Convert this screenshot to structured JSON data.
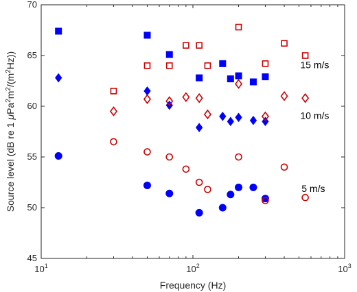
{
  "chart_data": {
    "type": "scatter",
    "xscale": "log",
    "xlim": [
      10,
      1000
    ],
    "ylim": [
      45,
      70
    ],
    "grid": false,
    "xlabel": "Frequency (Hz)",
    "ylabel_parts": {
      "base": "Source level (dB re 1 ",
      "mu": "μ",
      "pa": "Pa",
      "sup1": "2",
      "m": "m",
      "sup2": "2",
      "tail": "/(m",
      "sup3": "2",
      "end": "Hz))"
    },
    "x_ticks": [
      {
        "value": 10,
        "base": "10",
        "exp": "1"
      },
      {
        "value": 100,
        "base": "10",
        "exp": "2"
      },
      {
        "value": 1000,
        "base": "10",
        "exp": "3"
      }
    ],
    "y_ticks": [
      45,
      50,
      55,
      60,
      65,
      70
    ],
    "annotations": [
      {
        "text": "15 m/s",
        "x": 510,
        "y": 64.1
      },
      {
        "text": "10 m/s",
        "x": 510,
        "y": 59.1
      },
      {
        "text": "5 m/s",
        "x": 520,
        "y": 51.9
      }
    ],
    "series": [
      {
        "marker": "square",
        "filled": true,
        "color": "#0000ff",
        "points": [
          {
            "x": 13,
            "y": 67.4
          },
          {
            "x": 50,
            "y": 67.0
          },
          {
            "x": 70,
            "y": 65.1
          },
          {
            "x": 110,
            "y": 62.8
          },
          {
            "x": 157,
            "y": 64.2
          },
          {
            "x": 177,
            "y": 62.7
          },
          {
            "x": 200,
            "y": 63.0
          },
          {
            "x": 250,
            "y": 62.4
          },
          {
            "x": 300,
            "y": 62.9
          }
        ]
      },
      {
        "marker": "square",
        "filled": false,
        "color": "#cc0000",
        "points": [
          {
            "x": 30,
            "y": 61.5
          },
          {
            "x": 50,
            "y": 64.0
          },
          {
            "x": 70,
            "y": 64.0
          },
          {
            "x": 90,
            "y": 66.0
          },
          {
            "x": 110,
            "y": 66.0
          },
          {
            "x": 125,
            "y": 64.0
          },
          {
            "x": 200,
            "y": 67.8
          },
          {
            "x": 300,
            "y": 64.2
          },
          {
            "x": 400,
            "y": 66.2
          },
          {
            "x": 550,
            "y": 65.0
          }
        ]
      },
      {
        "marker": "diamond",
        "filled": true,
        "color": "#0000ff",
        "points": [
          {
            "x": 13,
            "y": 62.8
          },
          {
            "x": 50,
            "y": 61.5
          },
          {
            "x": 70,
            "y": 60.1
          },
          {
            "x": 110,
            "y": 57.9
          },
          {
            "x": 157,
            "y": 59.0
          },
          {
            "x": 177,
            "y": 58.5
          },
          {
            "x": 200,
            "y": 58.9
          },
          {
            "x": 250,
            "y": 58.6
          },
          {
            "x": 300,
            "y": 58.5
          }
        ]
      },
      {
        "marker": "diamond",
        "filled": false,
        "color": "#cc0000",
        "points": [
          {
            "x": 30,
            "y": 59.5
          },
          {
            "x": 50,
            "y": 60.7
          },
          {
            "x": 70,
            "y": 60.5
          },
          {
            "x": 90,
            "y": 60.9
          },
          {
            "x": 110,
            "y": 60.8
          },
          {
            "x": 125,
            "y": 59.2
          },
          {
            "x": 200,
            "y": 62.2
          },
          {
            "x": 300,
            "y": 59.0
          },
          {
            "x": 400,
            "y": 61.0
          },
          {
            "x": 550,
            "y": 60.8
          }
        ]
      },
      {
        "marker": "circle",
        "filled": true,
        "color": "#0000ff",
        "points": [
          {
            "x": 13,
            "y": 55.1
          },
          {
            "x": 50,
            "y": 52.2
          },
          {
            "x": 70,
            "y": 51.4
          },
          {
            "x": 110,
            "y": 49.5
          },
          {
            "x": 157,
            "y": 50.0
          },
          {
            "x": 177,
            "y": 51.3
          },
          {
            "x": 200,
            "y": 52.0
          },
          {
            "x": 250,
            "y": 52.0
          },
          {
            "x": 300,
            "y": 50.9
          }
        ]
      },
      {
        "marker": "circle",
        "filled": false,
        "color": "#cc0000",
        "points": [
          {
            "x": 30,
            "y": 56.5
          },
          {
            "x": 50,
            "y": 55.5
          },
          {
            "x": 70,
            "y": 55.0
          },
          {
            "x": 90,
            "y": 53.8
          },
          {
            "x": 110,
            "y": 52.5
          },
          {
            "x": 125,
            "y": 51.8
          },
          {
            "x": 200,
            "y": 55.0
          },
          {
            "x": 300,
            "y": 50.7
          },
          {
            "x": 400,
            "y": 54.0
          },
          {
            "x": 550,
            "y": 51.0
          }
        ]
      }
    ]
  }
}
